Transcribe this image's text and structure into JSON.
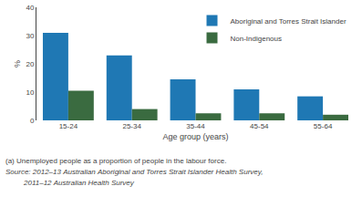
{
  "chart_data": {
    "type": "bar",
    "categories": [
      "15-24",
      "25-34",
      "35-44",
      "45-54",
      "55-64"
    ],
    "series": [
      {
        "name": "Aboriginal and Torres Strait Islander",
        "color": "#1F78B4",
        "values": [
          31,
          23,
          14.5,
          11,
          8.5
        ]
      },
      {
        "name": "Non-Indigenous",
        "color": "#3A6B40",
        "values": [
          10.5,
          4,
          2.5,
          2.5,
          2
        ]
      }
    ],
    "xlabel": "Age group (years)",
    "ylabel": "%",
    "ylim": [
      0,
      40
    ],
    "yticks": [
      0,
      10,
      20,
      30,
      40
    ],
    "grid": false,
    "legend": "upper right",
    "annotations": [
      "(a) Unemployed people as a proportion of people in the labour force.",
      "Source: 2012–13 Australian Aboriginal and Torres Strait Islander Health Survey,",
      "         2011–12 Australian Health Survey"
    ]
  }
}
